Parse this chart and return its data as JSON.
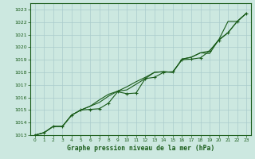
{
  "title": "Graphe pression niveau de la mer (hPa)",
  "background_color": "#cce8e0",
  "grid_color": "#aacccc",
  "line_color": "#1a5c1a",
  "xlim": [
    -0.5,
    23.5
  ],
  "ylim": [
    1013,
    1023.5
  ],
  "xticks": [
    0,
    1,
    2,
    3,
    4,
    5,
    6,
    7,
    8,
    9,
    10,
    11,
    12,
    13,
    14,
    15,
    16,
    17,
    18,
    19,
    20,
    21,
    22,
    23
  ],
  "yticks": [
    1013,
    1014,
    1015,
    1016,
    1017,
    1018,
    1019,
    1020,
    1021,
    1022,
    1023
  ],
  "series": [
    {
      "x": [
        0,
        1,
        2,
        3,
        4,
        5,
        6,
        7,
        8,
        9,
        10,
        11,
        12,
        13,
        14,
        15,
        16,
        17,
        18,
        19,
        20,
        21,
        22,
        23
      ],
      "y": [
        1013.0,
        1013.2,
        1013.7,
        1013.7,
        1014.6,
        1015.0,
        1015.05,
        1015.1,
        1015.55,
        1016.45,
        1016.3,
        1016.35,
        1017.5,
        1017.6,
        1018.0,
        1018.05,
        1019.0,
        1019.05,
        1019.15,
        1019.7,
        1020.55,
        1021.15,
        1022.05,
        1022.7
      ],
      "marker": true
    },
    {
      "x": [
        0,
        1,
        2,
        3,
        4,
        5,
        6,
        7,
        8,
        9,
        10,
        11,
        12,
        13,
        14,
        15,
        16,
        17,
        18,
        19,
        20,
        21,
        22,
        23
      ],
      "y": [
        1013.0,
        1013.2,
        1013.7,
        1013.7,
        1014.6,
        1015.0,
        1015.3,
        1015.6,
        1016.1,
        1016.5,
        1016.6,
        1017.05,
        1017.5,
        1018.0,
        1018.05,
        1018.0,
        1019.05,
        1019.2,
        1019.55,
        1019.5,
        1020.6,
        1022.05,
        1022.05,
        1022.7
      ],
      "marker": false
    },
    {
      "x": [
        0,
        1,
        2,
        3,
        4,
        5,
        6,
        7,
        8,
        9,
        10,
        11,
        12,
        13,
        14,
        15,
        16,
        17,
        18,
        19,
        20,
        21,
        22,
        23
      ],
      "y": [
        1013.0,
        1013.2,
        1013.7,
        1013.7,
        1014.6,
        1015.0,
        1015.3,
        1015.8,
        1016.25,
        1016.5,
        1016.85,
        1017.25,
        1017.6,
        1018.0,
        1018.05,
        1018.0,
        1019.05,
        1019.2,
        1019.55,
        1019.7,
        1020.6,
        1021.15,
        1022.05,
        1022.7
      ],
      "marker": false
    }
  ]
}
